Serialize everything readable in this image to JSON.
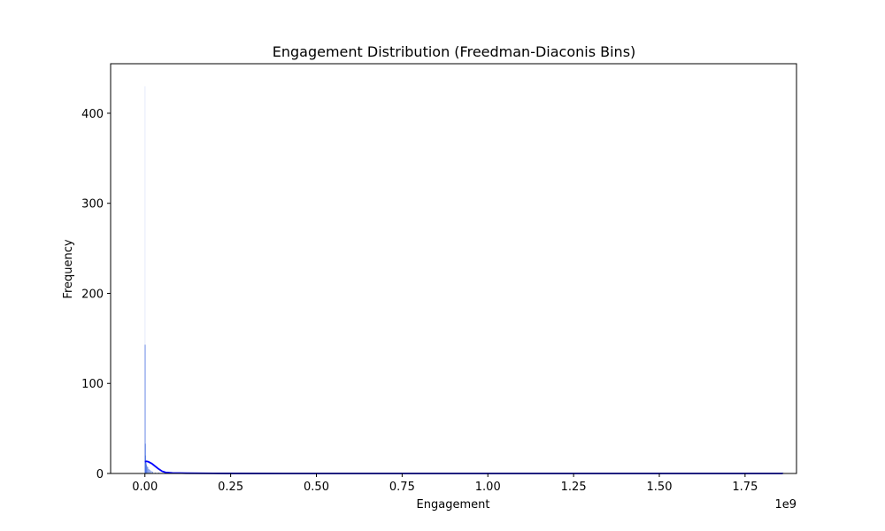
{
  "chart_data": {
    "type": "bar",
    "title": "Engagement Distribution (Freedman-Diaconis Bins)",
    "xlabel": "Engagement",
    "ylabel": "Frequency",
    "x_offset_label": "1e9",
    "xlim": [
      -0.1,
      1.9
    ],
    "ylim": [
      0,
      455
    ],
    "x_ticks": [
      0.0,
      0.25,
      0.5,
      0.75,
      1.0,
      1.25,
      1.5,
      1.75
    ],
    "x_tick_labels": [
      "0.00",
      "0.25",
      "0.50",
      "0.75",
      "1.00",
      "1.25",
      "1.50",
      "1.75"
    ],
    "y_ticks": [
      0,
      100,
      200,
      300,
      400
    ],
    "y_tick_labels": [
      "0",
      "100",
      "200",
      "300",
      "400"
    ],
    "grid": false,
    "bar_color": "#4169e1",
    "kde_color": "#0000ff",
    "bins": [
      {
        "x": 0.0,
        "value": 430
      },
      {
        "x": 0.0005,
        "value": 143
      },
      {
        "x": 0.001,
        "value": 33
      },
      {
        "x": 0.0015,
        "value": 20
      },
      {
        "x": 0.002,
        "value": 15
      },
      {
        "x": 0.003,
        "value": 12
      },
      {
        "x": 0.004,
        "value": 10
      },
      {
        "x": 0.006,
        "value": 8
      },
      {
        "x": 0.008,
        "value": 7
      },
      {
        "x": 0.011,
        "value": 5
      },
      {
        "x": 0.014,
        "value": 4
      },
      {
        "x": 0.018,
        "value": 3
      },
      {
        "x": 0.022,
        "value": 2
      },
      {
        "x": 0.03,
        "value": 1
      },
      {
        "x": 0.04,
        "value": 1
      },
      {
        "x": 0.06,
        "value": 1
      },
      {
        "x": 0.1,
        "value": 1
      },
      {
        "x": 0.11,
        "value": 1
      },
      {
        "x": 1.86,
        "value": 1
      }
    ],
    "kde": [
      {
        "x": 0.0,
        "y": 13
      },
      {
        "x": 0.005,
        "y": 13.5
      },
      {
        "x": 0.01,
        "y": 13
      },
      {
        "x": 0.02,
        "y": 11
      },
      {
        "x": 0.03,
        "y": 8
      },
      {
        "x": 0.04,
        "y": 5
      },
      {
        "x": 0.05,
        "y": 2.5
      },
      {
        "x": 0.06,
        "y": 1.2
      },
      {
        "x": 0.08,
        "y": 0.6
      },
      {
        "x": 0.12,
        "y": 0.3
      },
      {
        "x": 0.2,
        "y": 0.1
      },
      {
        "x": 0.4,
        "y": 0.02
      },
      {
        "x": 1.0,
        "y": 0
      },
      {
        "x": 1.86,
        "y": 0
      }
    ]
  }
}
